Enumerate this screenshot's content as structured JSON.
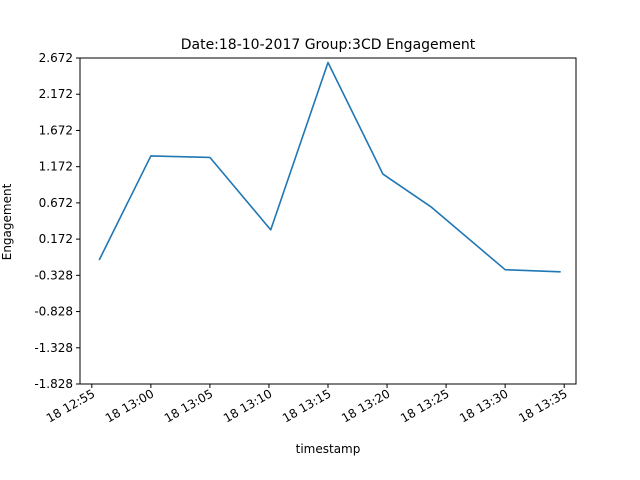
{
  "chart_data": {
    "type": "line",
    "title": "Date:18-10-2017 Group:3CD Engagement",
    "xlabel": "timestamp",
    "ylabel": "Engagement",
    "x": [
      "13:00",
      "13:05",
      "13:10",
      "13:15",
      "13:20",
      "13:25",
      "13:30",
      "13:35"
    ],
    "xlim": [
      "12:54",
      "13:36"
    ],
    "ylim": [
      -1.828,
      2.672
    ],
    "yticks": [
      -1.828,
      -1.328,
      -0.828,
      -0.328,
      0.172,
      0.672,
      1.172,
      1.672,
      2.172,
      2.672
    ],
    "ytick_labels": [
      "-1.828",
      "-1.328",
      "-0.828",
      "-0.328",
      "0.172",
      "0.672",
      "1.172",
      "1.672",
      "2.172",
      "2.672"
    ],
    "xticks": [
      "12:55",
      "13:00",
      "13:05",
      "13:10",
      "13:15",
      "13:20",
      "13:25",
      "13:30",
      "13:35"
    ],
    "xtick_labels": [
      "18 12:55",
      "18 13:00",
      "18 13:05",
      "18 13:10",
      "18 13:15",
      "18 13:20",
      "18 13:25",
      "18 13:30",
      "18 13:35"
    ],
    "series": [
      {
        "color": "#1f77b4",
        "points": [
          {
            "x": "12:55:39",
            "y": -0.108
          },
          {
            "x": "13:00:00",
            "y": 1.32
          },
          {
            "x": "13:05:00",
            "y": 1.3
          },
          {
            "x": "13:10:09",
            "y": 0.3
          },
          {
            "x": "13:15:00",
            "y": 2.61
          },
          {
            "x": "13:19:39",
            "y": 1.07
          },
          {
            "x": "13:23:42",
            "y": 0.62
          },
          {
            "x": "13:30:00",
            "y": -0.25
          },
          {
            "x": "13:34:39",
            "y": -0.28
          }
        ]
      }
    ],
    "grid": false,
    "legend": "none"
  }
}
